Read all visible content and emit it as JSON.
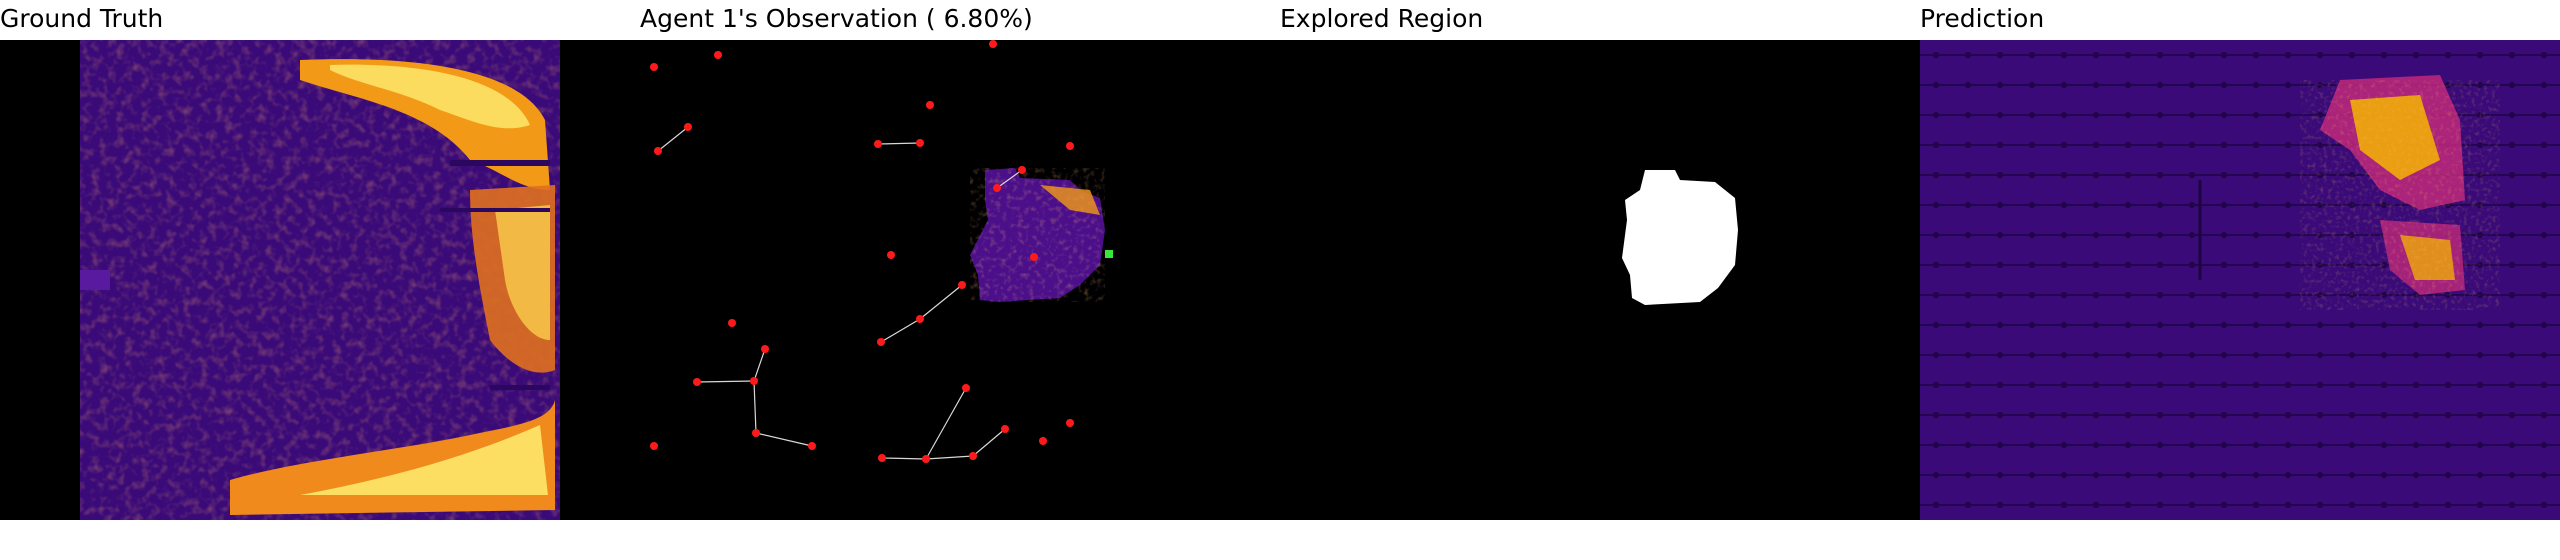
{
  "panels": [
    {
      "title": "Ground Truth"
    },
    {
      "title": "Agent 1's Observation ( 6.80%)"
    },
    {
      "title": "Explored Region"
    },
    {
      "title": "Prediction"
    }
  ],
  "observation": {
    "coverage_percent": 6.8,
    "current_agent_marker": "green-square",
    "node_marker": "red-dot"
  },
  "colors": {
    "background": "#000000",
    "heat_low": "#3a0a78",
    "heat_mid": "#c0287a",
    "heat_high": "#f4b400",
    "heat_peak": "#fde76b",
    "node": "#ff1a1a",
    "agent": "#39e639",
    "edge": "#d9d9d9",
    "explored": "#ffffff"
  }
}
